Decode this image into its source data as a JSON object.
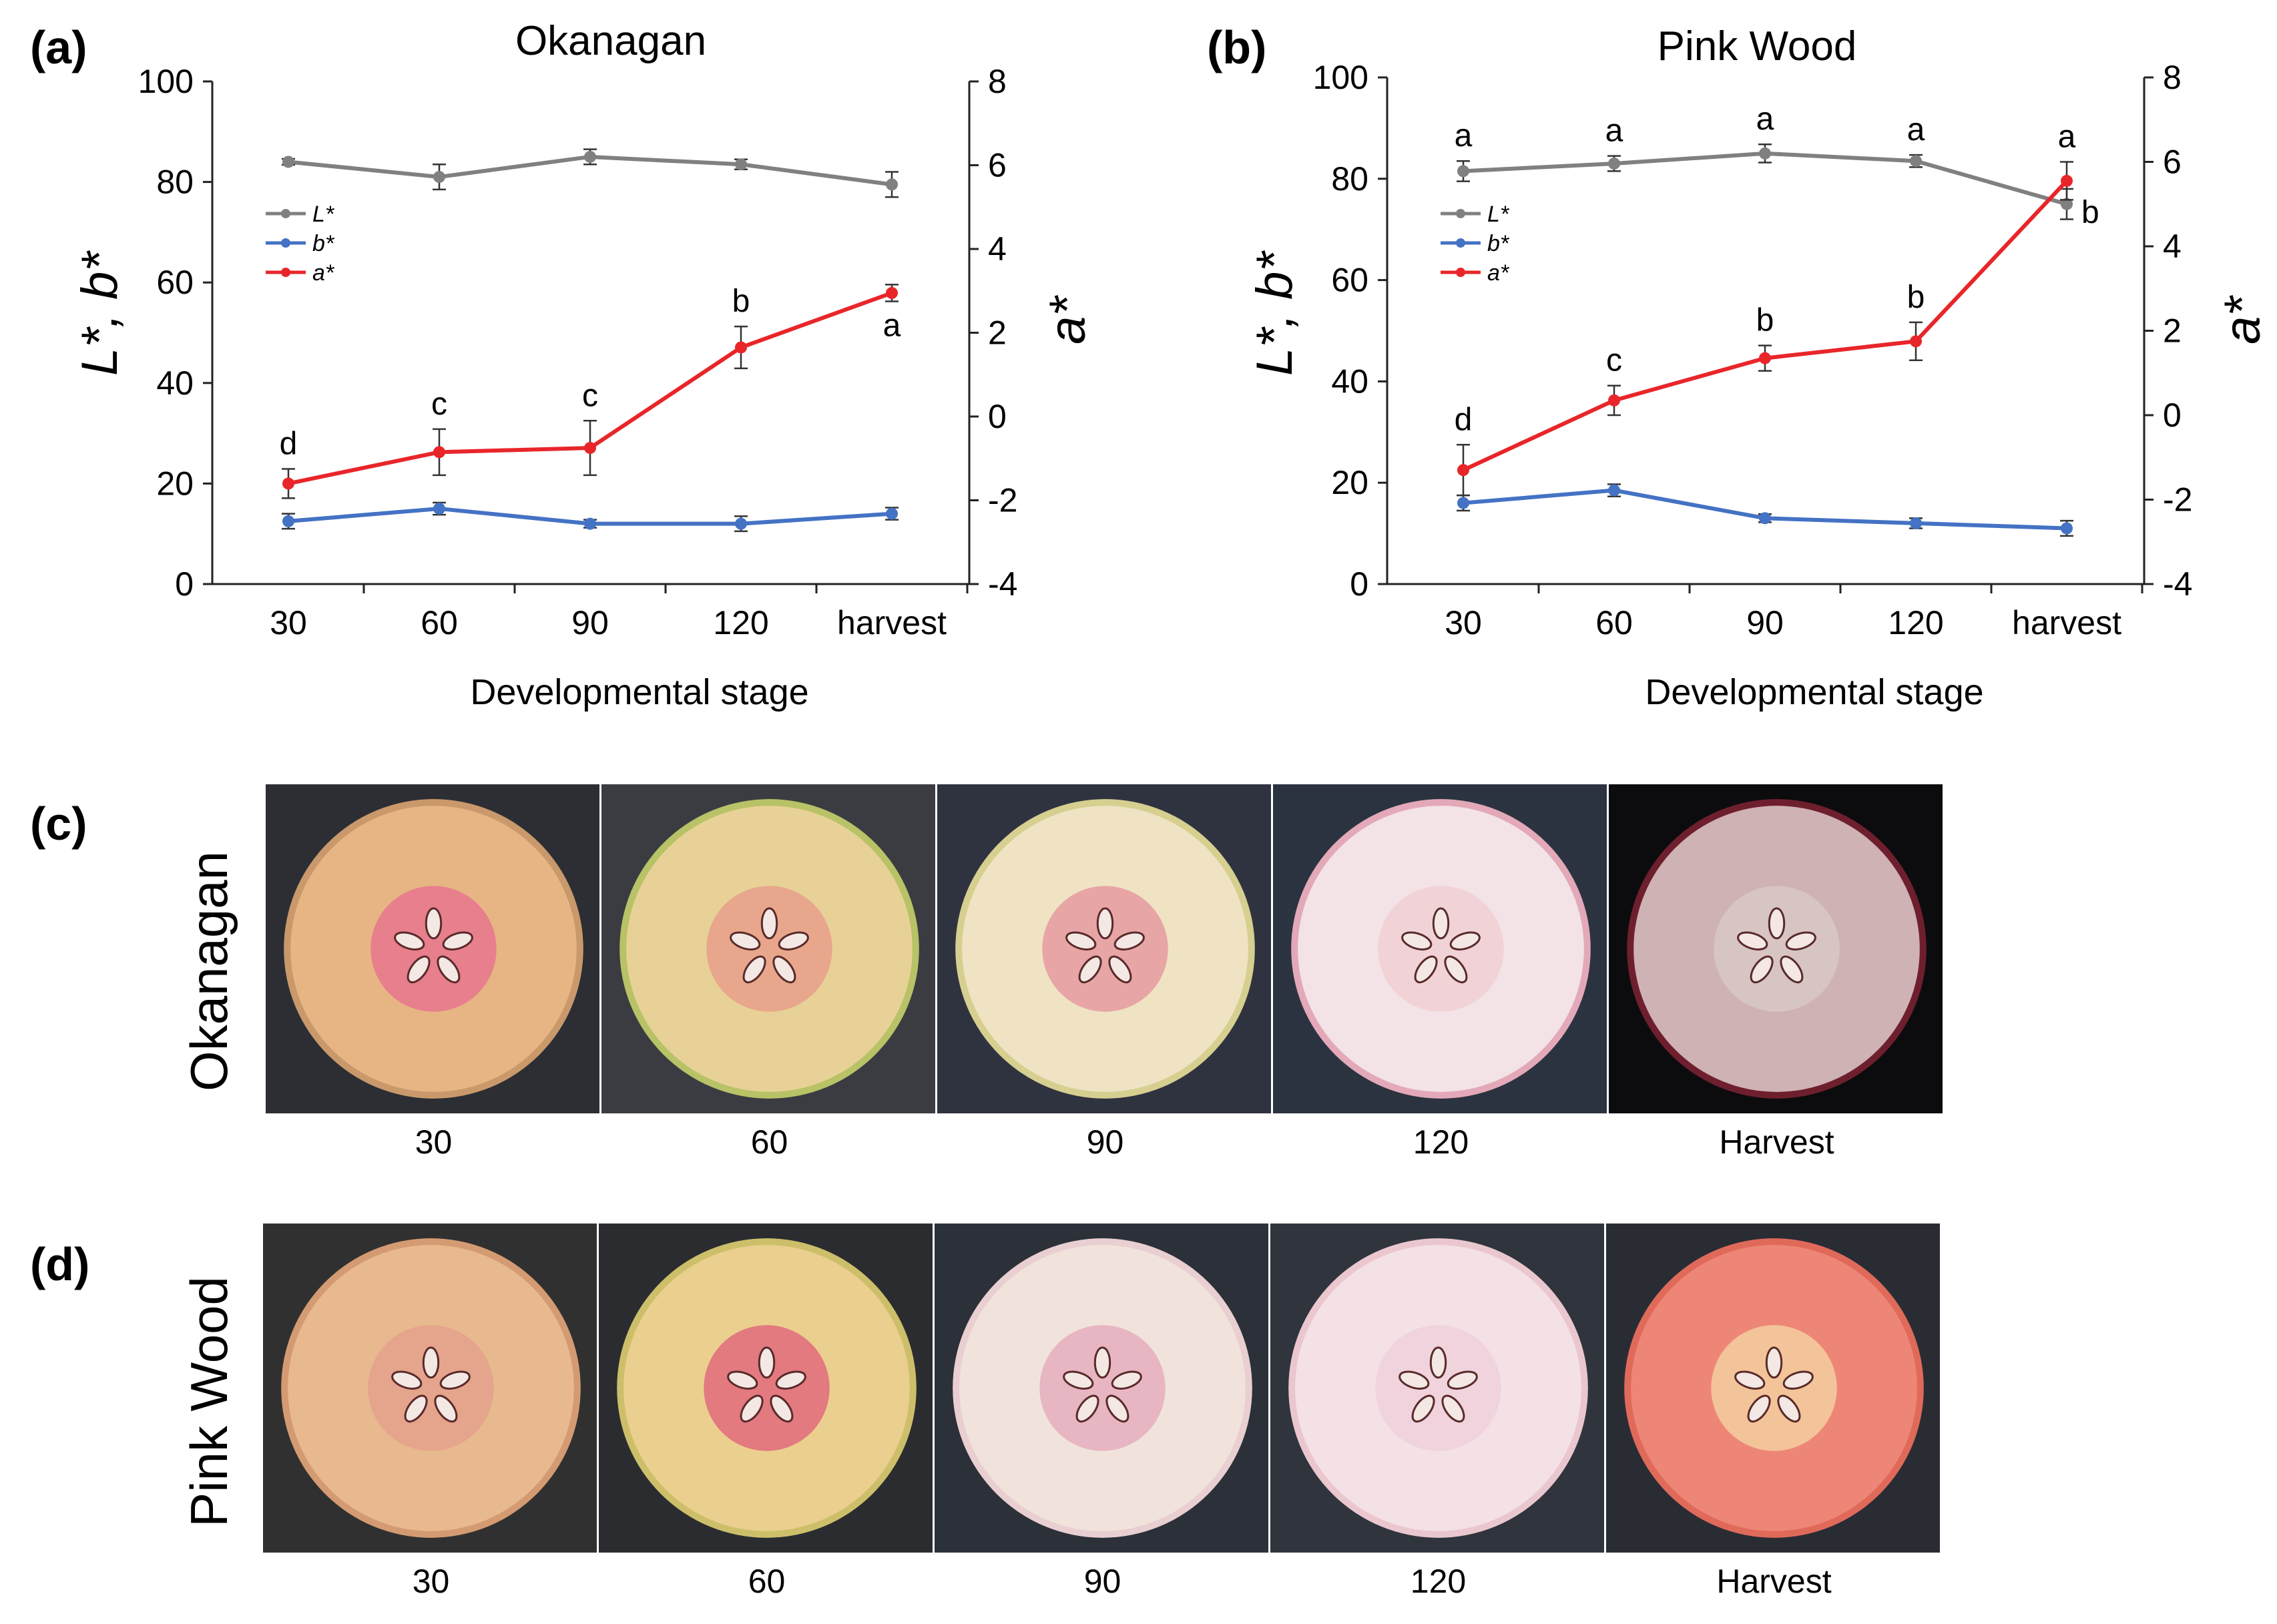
{
  "panels": {
    "a": "(a)",
    "b": "(b)",
    "c": "(c)",
    "d": "(d)"
  },
  "chart_data": [
    {
      "type": "line",
      "panel": "(a)",
      "title": "Okanagan",
      "xlabel": "Developmental stage",
      "ylabel_left": "L*, b*",
      "ylabel_right": "a*",
      "categories": [
        "30",
        "60",
        "90",
        "120",
        "harvest"
      ],
      "ylim_left": [
        0,
        100
      ],
      "ylim_right": [
        -4,
        8
      ],
      "yticks_left": [
        "0",
        "20",
        "40",
        "60",
        "80",
        "100"
      ],
      "yticks_right": [
        "-4",
        "-2",
        "0",
        "2",
        "4",
        "6",
        "8"
      ],
      "grid": false,
      "legend_position": "upper-left",
      "series": [
        {
          "name": "L*",
          "axis": "left",
          "color": "#808080",
          "values": [
            84,
            81,
            85,
            83.5,
            79.5
          ],
          "errors": [
            0.6,
            2.5,
            1.5,
            1.0,
            2.5
          ],
          "labels": []
        },
        {
          "name": "b*",
          "axis": "left",
          "color": "#4472C4",
          "values": [
            12.5,
            15,
            12,
            12,
            14
          ],
          "errors": [
            1.5,
            1.2,
            0.8,
            1.5,
            1.2
          ],
          "labels": []
        },
        {
          "name": "a*",
          "axis": "right",
          "color": "#E8262A",
          "values": [
            -1.6,
            -0.85,
            -0.75,
            1.65,
            2.95
          ],
          "errors": [
            0.35,
            0.55,
            0.65,
            0.5,
            0.2
          ],
          "labels": [
            "d",
            "c",
            "c",
            "b",
            "a"
          ]
        }
      ]
    },
    {
      "type": "line",
      "panel": "(b)",
      "title": "Pink Wood",
      "xlabel": "Developmental stage",
      "ylabel_left": "L*, b*",
      "ylabel_right": "a*",
      "categories": [
        "30",
        "60",
        "90",
        "120",
        "harvest"
      ],
      "ylim_left": [
        0,
        100
      ],
      "ylim_right": [
        -4,
        8
      ],
      "yticks_left": [
        "0",
        "20",
        "40",
        "60",
        "80",
        "100"
      ],
      "yticks_right": [
        "-4",
        "-2",
        "0",
        "2",
        "4",
        "6",
        "8"
      ],
      "grid": false,
      "legend_position": "upper-left",
      "series": [
        {
          "name": "L*",
          "axis": "left",
          "color": "#808080",
          "values": [
            81.5,
            83,
            85,
            83.5,
            75
          ],
          "errors": [
            2,
            1.5,
            1.8,
            1.2,
            3
          ],
          "labels": [
            "a",
            "a",
            "a",
            "a",
            "b"
          ]
        },
        {
          "name": "b*",
          "axis": "left",
          "color": "#4472C4",
          "values": [
            16,
            18.5,
            13,
            12,
            11
          ],
          "errors": [
            1.5,
            1.2,
            0.8,
            1.0,
            1.5
          ],
          "labels": []
        },
        {
          "name": "a*",
          "axis": "right",
          "color": "#E8262A",
          "values": [
            -1.3,
            0.35,
            1.35,
            1.75,
            5.55
          ],
          "errors": [
            0.6,
            0.35,
            0.3,
            0.45,
            0.45
          ],
          "labels": [
            "d",
            "c",
            "b",
            "b",
            "a"
          ]
        }
      ]
    }
  ],
  "photos": {
    "okanagan": {
      "row_label": "Okanagan",
      "labels": [
        "30",
        "60",
        "90",
        "120",
        "Harvest"
      ],
      "flesh_colors": [
        "#e7b584",
        "#e8d197",
        "#efe3c4",
        "#f3e3e6",
        "#cfb2b4"
      ],
      "core_colors": [
        "#e6758d",
        "#e8a08a",
        "#e69aa0",
        "#f0cfd4",
        "#d8c8c5"
      ],
      "skin_colors": [
        "#c9996b",
        "#b8c266",
        "#d6cf8f",
        "#e3a9b8",
        "#6e1f2e"
      ],
      "background_colors": [
        "#2c2e34",
        "#3a3c42",
        "#2f3340",
        "#2c3340",
        "#0c0c0e"
      ]
    },
    "pink_wood": {
      "row_label": "Pink Wood",
      "labels": [
        "30",
        "60",
        "90",
        "120",
        "Harvest"
      ],
      "flesh_colors": [
        "#e8b98f",
        "#ebcf8f",
        "#f1e3dc",
        "#f4e1e5",
        "#ee8678"
      ],
      "core_colors": [
        "#e4a08c",
        "#e06b7c",
        "#e5aebd",
        "#eed0da",
        "#f3cf9f"
      ],
      "skin_colors": [
        "#d49b73",
        "#cdbf6a",
        "#e9cfd1",
        "#eac7cf",
        "#e06a5a"
      ],
      "background_colors": [
        "#303030",
        "#2a2c30",
        "#2c3038",
        "#30343c",
        "#2a2c34"
      ]
    }
  }
}
